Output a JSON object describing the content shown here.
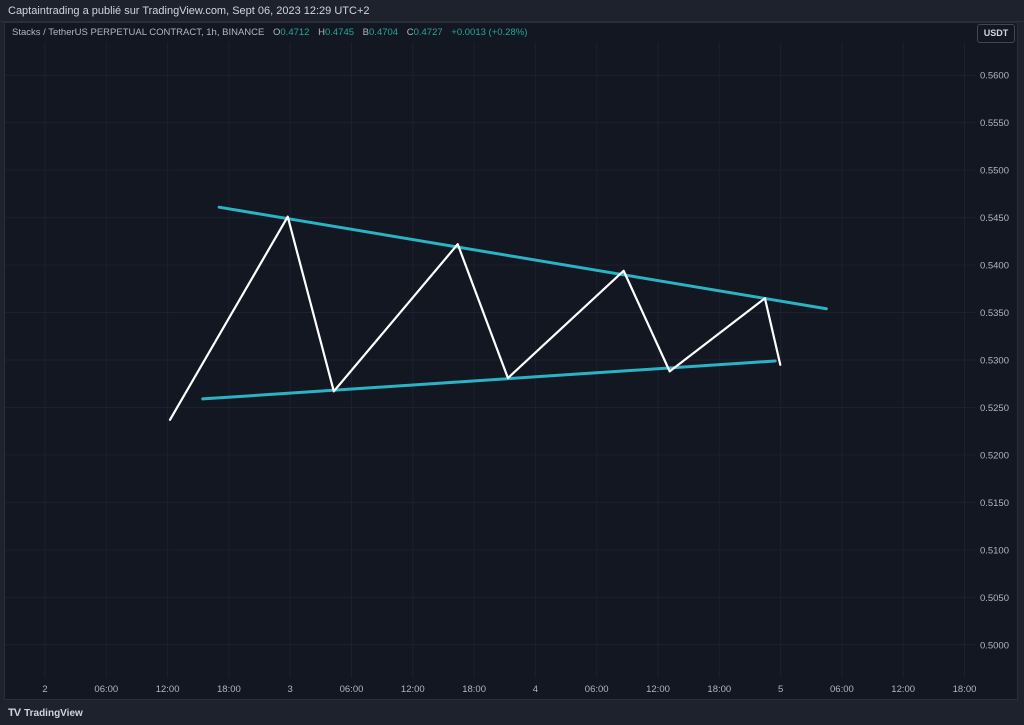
{
  "header": {
    "publish_info": "Captaintrading a publié sur TradingView.com, Sept 06, 2023 12:29 UTC+2"
  },
  "legend": {
    "symbol": "Stacks / TetherUS PERPETUAL CONTRACT, 1h, BINANCE",
    "open_label": "O",
    "open_value": "0.4712",
    "high_label": "H",
    "high_value": "0.4745",
    "low_label": "B",
    "low_value": "0.4704",
    "close_label": "C",
    "close_value": "0.4727",
    "change": "+0.0013 (+0.28%)"
  },
  "currency_button": "USDT",
  "footer": {
    "brand": "TradingView",
    "logo_glyph": "TV"
  },
  "colors": {
    "background": "#131722",
    "line": "#ffffff",
    "trendline": "#2bb3c5",
    "legend_value": "#26a69a"
  },
  "chart_data": {
    "type": "line",
    "title": "",
    "xlabel": "",
    "ylabel": "",
    "ylim": [
      0.4965,
      0.5635
    ],
    "y_ticks": [
      "0.5600",
      "0.5550",
      "0.5500",
      "0.5450",
      "0.5400",
      "0.5350",
      "0.5300",
      "0.5250",
      "0.5200",
      "0.5150",
      "0.5100",
      "0.5050",
      "0.5000"
    ],
    "x_tick_labels": [
      "2",
      "06:00",
      "12:00",
      "18:00",
      "3",
      "06:00",
      "12:00",
      "18:00",
      "4",
      "06:00",
      "12:00",
      "18:00",
      "5",
      "06:00",
      "12:00",
      "18:00"
    ],
    "grid": true,
    "series": [
      {
        "x": [
          16.6,
          28.1,
          32.6,
          44.7,
          49.6,
          60.9,
          65.4,
          74.7,
          76.2
        ],
        "values": [
          0.5237,
          0.5451,
          0.5267,
          0.5422,
          0.5281,
          0.5394,
          0.5288,
          0.5365,
          0.5295
        ]
      }
    ],
    "trendlines": [
      {
        "x": [
          21.4,
          80.7
        ],
        "values": [
          0.5461,
          0.5354
        ]
      },
      {
        "x": [
          19.8,
          75.7
        ],
        "values": [
          0.5259,
          0.5299
        ]
      }
    ]
  }
}
